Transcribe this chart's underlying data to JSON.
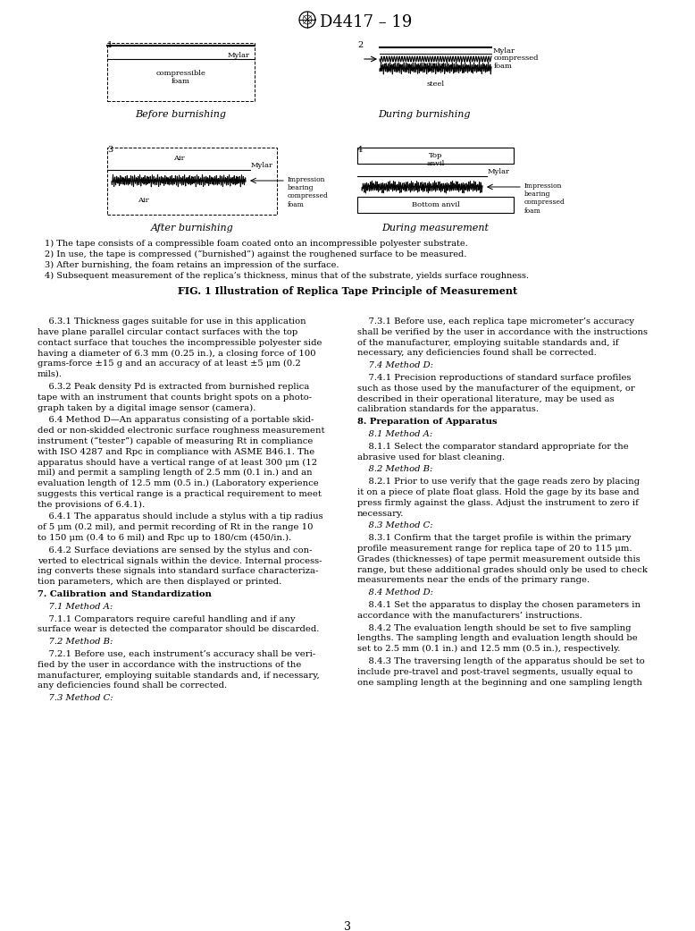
{
  "title": "D4417 – 19",
  "bg_color": "#ffffff",
  "text_color": "#000000",
  "fig1_caption": "FIG. 1 Illustration of Replica Tape Principle of Measurement",
  "notes": [
    "1) The tape consists of a compressible foam coated onto an incompressible polyester substrate.",
    "2) In use, the tape is compressed (“burnished”) against the roughened surface to be measured.",
    "3) After burnishing, the foam retains an impression of the surface.",
    "4) Subsequent measurement of the replica’s thickness, minus that of the substrate, yields surface roughness."
  ],
  "page_number": "3",
  "fig1_caption_bold": true,
  "left_paragraphs": [
    {
      "text": "    6.3.1 Thickness gages suitable for use in this application\nhave plane parallel circular contact surfaces with the top\ncontact surface that touches the incompressible polyester side\nhaving a diameter of 6.3 mm (0.25 in.), a closing force of 100\ngrams-force ±15 g and an accuracy of at least ±5 μm (0.2\nmils).",
      "bold": false,
      "italic": false
    },
    {
      "text": "    6.3.2 Peak density Pd is extracted from burnished replica\ntape with an instrument that counts bright spots on a photo-\ngraph taken by a digital image sensor (camera).",
      "bold": false,
      "italic": false
    },
    {
      "text": "    6.4 Method D—An apparatus consisting of a portable skid-\nded or non-skidded electronic surface roughness measurement\ninstrument (“tester”) capable of measuring Rt in compliance\nwith ISO 4287 and Rpc in compliance with ASME B46.1. The\napparatus should have a vertical range of at least 300 μm (12\nmil) and permit a sampling length of 2.5 mm (0.1 in.) and an\nevaluation length of 12.5 mm (0.5 in.) (Laboratory experience\nsuggests this vertical range is a practical requirement to meet\nthe provisions of 6.4.1).",
      "bold": false,
      "italic": false
    },
    {
      "text": "    6.4.1 The apparatus should include a stylus with a tip radius\nof 5 μm (0.2 mil), and permit recording of Rt in the range 10\nto 150 μm (0.4 to 6 mil) and Rpc up to 180/cm (450/in.).",
      "bold": false,
      "italic": false
    },
    {
      "text": "    6.4.2 Surface deviations are sensed by the stylus and con-\nverted to electrical signals within the device. Internal process-\ning converts these signals into standard surface characteriza-\ntion parameters, which are then displayed or printed.",
      "bold": false,
      "italic": false
    },
    {
      "text": "7. Calibration and Standardization",
      "bold": true,
      "italic": false
    },
    {
      "text": "    7.1 Method A:",
      "bold": false,
      "italic": true
    },
    {
      "text": "    7.1.1 Comparators require careful handling and if any\nsurface wear is detected the comparator should be discarded.",
      "bold": false,
      "italic": false
    },
    {
      "text": "    7.2 Method B:",
      "bold": false,
      "italic": true
    },
    {
      "text": "    7.2.1 Before use, each instrument’s accuracy shall be veri-\nfied by the user in accordance with the instructions of the\nmanufacturer, employing suitable standards and, if necessary,\nany deficiencies found shall be corrected.",
      "bold": false,
      "italic": false
    },
    {
      "text": "    7.3 Method C:",
      "bold": false,
      "italic": true
    }
  ],
  "right_paragraphs": [
    {
      "text": "    7.3.1 Before use, each replica tape micrometer’s accuracy\nshall be verified by the user in accordance with the instructions\nof the manufacturer, employing suitable standards and, if\nnecessary, any deficiencies found shall be corrected.",
      "bold": false,
      "italic": false
    },
    {
      "text": "    7.4 Method D:",
      "bold": false,
      "italic": true
    },
    {
      "text": "    7.4.1 Precision reproductions of standard surface profiles\nsuch as those used by the manufacturer of the equipment, or\ndescribed in their operational literature, may be used as\ncalibration standards for the apparatus.",
      "bold": false,
      "italic": false
    },
    {
      "text": "8. Preparation of Apparatus",
      "bold": true,
      "italic": false
    },
    {
      "text": "    8.1 Method A:",
      "bold": false,
      "italic": true
    },
    {
      "text": "    8.1.1 Select the comparator standard appropriate for the\nabrasive used for blast cleaning.",
      "bold": false,
      "italic": false
    },
    {
      "text": "    8.2 Method B:",
      "bold": false,
      "italic": true
    },
    {
      "text": "    8.2.1 Prior to use verify that the gage reads zero by placing\nit on a piece of plate float glass. Hold the gage by its base and\npress firmly against the glass. Adjust the instrument to zero if\nnecessary.",
      "bold": false,
      "italic": false
    },
    {
      "text": "    8.3 Method C:",
      "bold": false,
      "italic": true
    },
    {
      "text": "    8.3.1 Confirm that the target profile is within the primary\nprofile measurement range for replica tape of 20 to 115 μm.\nGrades (thicknesses) of tape permit measurement outside this\nrange, but these additional grades should only be used to check\nmeasurements near the ends of the primary range.",
      "bold": false,
      "italic": false
    },
    {
      "text": "    8.4 Method D:",
      "bold": false,
      "italic": true
    },
    {
      "text": "    8.4.1 Set the apparatus to display the chosen parameters in\naccordance with the manufacturers’ instructions.",
      "bold": false,
      "italic": false
    },
    {
      "text": "    8.4.2 The evaluation length should be set to five sampling\nlengths. The sampling length and evaluation length should be\nset to 2.5 mm (0.1 in.) and 12.5 mm (0.5 in.), respectively.",
      "bold": false,
      "italic": false
    },
    {
      "text": "    8.4.3 The traversing length of the apparatus should be set to\ninclude pre-travel and post-travel segments, usually equal to\none sampling length at the beginning and one sampling length",
      "bold": false,
      "italic": false
    }
  ]
}
